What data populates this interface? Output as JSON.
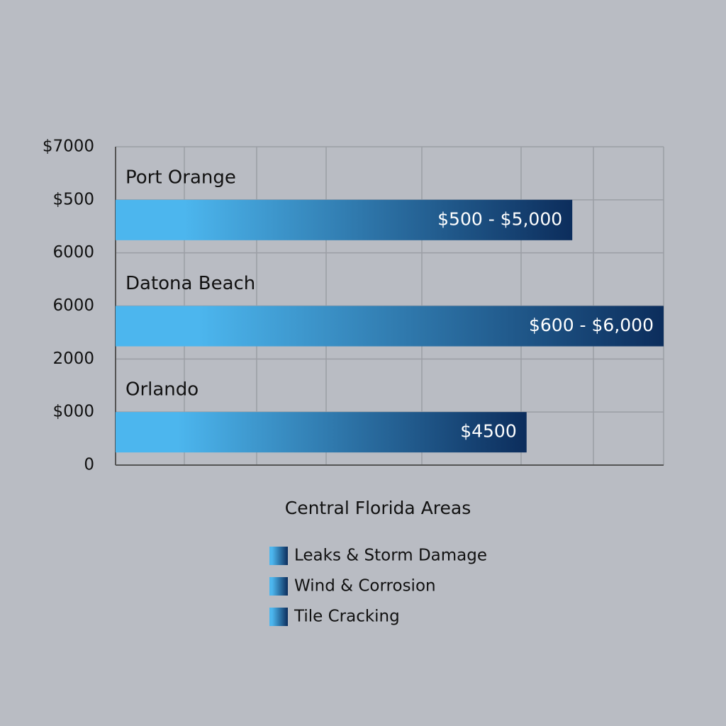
{
  "chart_data": {
    "type": "hbar",
    "left_axis_labels": [
      "$7000",
      "$500",
      "6000",
      "6000",
      "2000",
      "$000",
      "0"
    ],
    "categories": [
      "Port Orange",
      "Datona Beach",
      "Orlando"
    ],
    "values": [
      5000,
      6000,
      4500
    ],
    "value_labels": [
      "$500 - $5,000",
      "$600 - $6,000",
      "$4500"
    ],
    "xlim": [
      0,
      6000
    ],
    "x_axis_label": "Central Florida Areas",
    "color_start": "#4cb6ee",
    "color_end": "#0c2d5c",
    "legend": [
      "Leaks & Storm Damage",
      "Wind & Corrosion",
      "Tile Cracking"
    ],
    "grid": true
  }
}
